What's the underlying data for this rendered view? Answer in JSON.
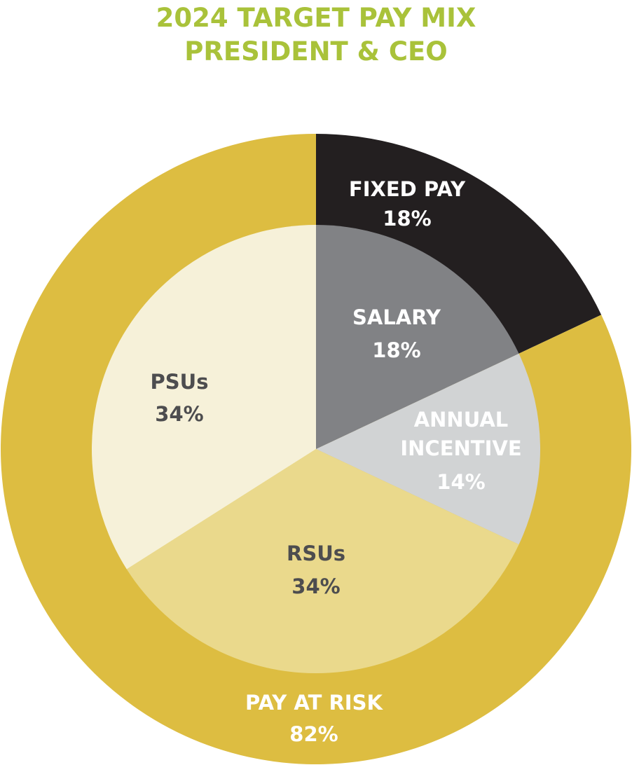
{
  "chart_data": {
    "type": "pie",
    "title": "2024 TARGET PAY MIX",
    "subtitle": "PRESIDENT & CEO",
    "outer_ring": [
      {
        "name": "FIXED PAY",
        "value": 18,
        "label": "18%",
        "color": "#231F20"
      },
      {
        "name": "PAY AT RISK",
        "value": 82,
        "label": "82%",
        "color": "#DDBD41"
      }
    ],
    "inner_pie": [
      {
        "name": "SALARY",
        "value": 18,
        "label": "18%",
        "color": "#818285"
      },
      {
        "name": "ANNUAL INCENTIVE",
        "name_lines": [
          "ANNUAL",
          "INCENTIVE"
        ],
        "value": 14,
        "label": "14%",
        "color": "#D1D3D4"
      },
      {
        "name": "RSUs",
        "value": 34,
        "label": "34%",
        "color": "#EAD98C"
      },
      {
        "name": "PSUs",
        "value": 34,
        "label": "34%",
        "color": "#F6F1D9"
      }
    ],
    "legend": "none"
  }
}
